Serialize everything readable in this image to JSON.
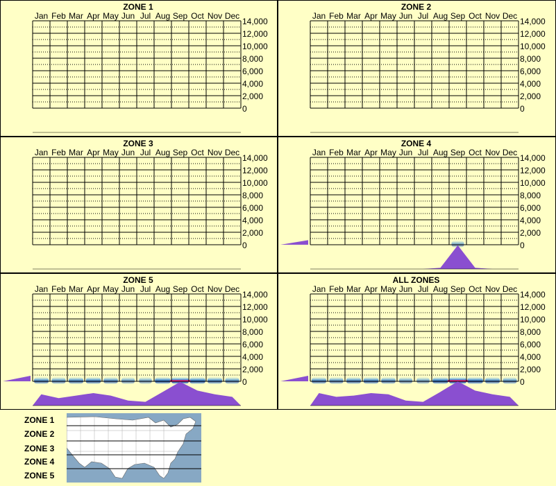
{
  "colors": {
    "background": "#ffffc6",
    "panel_border": "#000000",
    "grid_line": "#000000",
    "profile_fill": "#8a4fd0",
    "heat_low": "#a6d8f0",
    "heat_mid": "#2b7fd4",
    "heat_high": "#0a3a9e",
    "heat_peak": "#e0308a",
    "map_water": "#87a8c4",
    "map_land": "#ffffff"
  },
  "months": [
    "Jan",
    "Feb",
    "Mar",
    "Apr",
    "May",
    "Jun",
    "Jul",
    "Aug",
    "Sep",
    "Oct",
    "Nov",
    "Dec"
  ],
  "y_ticks": [
    "14,000",
    "12,000",
    "10,000",
    "8,000",
    "6,000",
    "4,000",
    "2,000",
    "0"
  ],
  "legend": {
    "zones": [
      "ZONE 1",
      "ZONE 2",
      "ZONE 3",
      "ZONE 4",
      "ZONE 5"
    ]
  },
  "chart_data": [
    {
      "type": "heatmap",
      "title": "ZONE 1",
      "categories": [
        "Jan",
        "Feb",
        "Mar",
        "Apr",
        "May",
        "Jun",
        "Jul",
        "Aug",
        "Sep",
        "Oct",
        "Nov",
        "Dec"
      ],
      "ylim": [
        0,
        14000
      ],
      "yticks": [
        0,
        2000,
        4000,
        6000,
        8000,
        10000,
        12000,
        14000
      ],
      "grid": true,
      "side_intensity": 0,
      "monthly_profile": [
        0,
        0,
        0,
        0,
        0,
        0,
        0,
        0,
        0,
        0,
        0,
        0
      ],
      "heat_band": [
        0,
        0,
        0,
        0,
        0,
        0,
        0,
        0,
        0,
        0,
        0,
        0
      ]
    },
    {
      "type": "heatmap",
      "title": "ZONE 2",
      "categories": [
        "Jan",
        "Feb",
        "Mar",
        "Apr",
        "May",
        "Jun",
        "Jul",
        "Aug",
        "Sep",
        "Oct",
        "Nov",
        "Dec"
      ],
      "ylim": [
        0,
        14000
      ],
      "yticks": [
        0,
        2000,
        4000,
        6000,
        8000,
        10000,
        12000,
        14000
      ],
      "grid": true,
      "side_intensity": 0,
      "monthly_profile": [
        0,
        0,
        0,
        0,
        0,
        0,
        0,
        0,
        0,
        0,
        0,
        0
      ],
      "heat_band": [
        0,
        0,
        0,
        0,
        0,
        0,
        0,
        0,
        0,
        0,
        0,
        0
      ]
    },
    {
      "type": "heatmap",
      "title": "ZONE 3",
      "categories": [
        "Jan",
        "Feb",
        "Mar",
        "Apr",
        "May",
        "Jun",
        "Jul",
        "Aug",
        "Sep",
        "Oct",
        "Nov",
        "Dec"
      ],
      "ylim": [
        0,
        14000
      ],
      "yticks": [
        0,
        2000,
        4000,
        6000,
        8000,
        10000,
        12000,
        14000
      ],
      "grid": true,
      "side_intensity": 0,
      "monthly_profile": [
        0,
        0,
        0,
        0,
        0,
        0,
        0,
        0,
        0,
        0,
        0,
        0
      ],
      "heat_band": [
        0,
        0,
        0,
        0,
        0,
        0,
        0,
        0,
        0,
        0,
        0,
        0
      ]
    },
    {
      "type": "heatmap",
      "title": "ZONE 4",
      "categories": [
        "Jan",
        "Feb",
        "Mar",
        "Apr",
        "May",
        "Jun",
        "Jul",
        "Aug",
        "Sep",
        "Oct",
        "Nov",
        "Dec"
      ],
      "ylim": [
        0,
        14000
      ],
      "yticks": [
        0,
        2000,
        4000,
        6000,
        8000,
        10000,
        12000,
        14000
      ],
      "grid": true,
      "side_intensity": 0.25,
      "monthly_profile": [
        0,
        0,
        0,
        0,
        0,
        0,
        0,
        0.05,
        0.95,
        0.05,
        0,
        0
      ],
      "heat_band": [
        0,
        0,
        0,
        0,
        0,
        0,
        0,
        0,
        0.3,
        0,
        0,
        0
      ]
    },
    {
      "type": "heatmap",
      "title": "ZONE 5",
      "categories": [
        "Jan",
        "Feb",
        "Mar",
        "Apr",
        "May",
        "Jun",
        "Jul",
        "Aug",
        "Sep",
        "Oct",
        "Nov",
        "Dec"
      ],
      "ylim": [
        0,
        14000
      ],
      "yticks": [
        0,
        2000,
        4000,
        6000,
        8000,
        10000,
        12000,
        14000
      ],
      "grid": true,
      "side_intensity": 0.3,
      "monthly_profile": [
        0.45,
        0.3,
        0.4,
        0.5,
        0.4,
        0.2,
        0.15,
        0.55,
        0.95,
        0.6,
        0.45,
        0.35
      ],
      "heat_band": [
        0.6,
        0.5,
        0.6,
        0.65,
        0.55,
        0.4,
        0.35,
        0.75,
        1.0,
        0.75,
        0.6,
        0.5
      ]
    },
    {
      "type": "heatmap",
      "title": "ALL ZONES",
      "categories": [
        "Jan",
        "Feb",
        "Mar",
        "Apr",
        "May",
        "Jun",
        "Jul",
        "Aug",
        "Sep",
        "Oct",
        "Nov",
        "Dec"
      ],
      "ylim": [
        0,
        14000
      ],
      "yticks": [
        0,
        2000,
        4000,
        6000,
        8000,
        10000,
        12000,
        14000
      ],
      "grid": true,
      "side_intensity": 0.3,
      "monthly_profile": [
        0.5,
        0.35,
        0.4,
        0.5,
        0.45,
        0.2,
        0.15,
        0.55,
        0.97,
        0.6,
        0.45,
        0.35
      ],
      "heat_band": [
        0.6,
        0.5,
        0.6,
        0.65,
        0.55,
        0.4,
        0.35,
        0.75,
        1.0,
        0.75,
        0.6,
        0.5
      ]
    }
  ]
}
